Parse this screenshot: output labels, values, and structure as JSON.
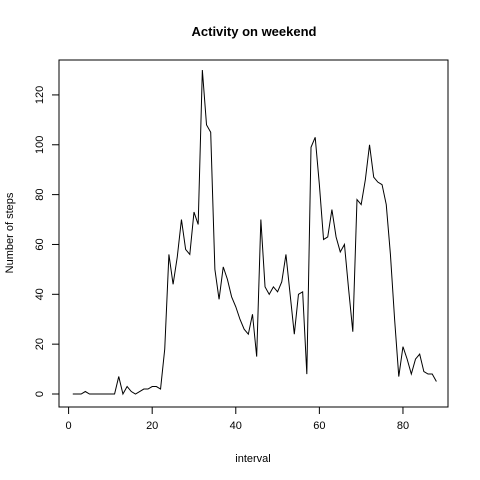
{
  "chart_data": {
    "type": "line",
    "title": "Activity on weekend",
    "xlabel": "interval",
    "ylabel": "Number of steps",
    "xlim": [
      0,
      88
    ],
    "ylim": [
      0,
      130
    ],
    "x_ticks": [
      0,
      20,
      40,
      60,
      80
    ],
    "y_ticks": [
      0,
      20,
      40,
      60,
      80,
      100,
      120
    ],
    "grid": false,
    "line_color": "#000000",
    "series": [
      {
        "x": [
          1,
          2,
          3,
          4,
          5,
          6,
          7,
          8,
          9,
          10,
          11,
          12,
          13,
          14,
          15,
          16,
          17,
          18,
          19,
          20,
          21,
          22,
          23,
          24,
          25,
          26,
          27,
          28,
          29,
          30,
          31,
          32,
          33,
          34,
          35,
          36,
          37,
          38,
          39,
          40,
          41,
          42,
          43,
          44,
          45,
          46,
          47,
          48,
          49,
          50,
          51,
          52,
          53,
          54,
          55,
          56,
          57,
          58,
          59,
          60,
          61,
          62,
          63,
          64,
          65,
          66,
          67,
          68,
          69,
          70,
          71,
          72,
          73,
          74,
          75,
          76,
          77,
          78,
          79,
          80,
          81,
          82,
          83,
          84,
          85,
          86,
          87,
          88
        ],
        "values": [
          0,
          0,
          0,
          1,
          0,
          0,
          0,
          0,
          0,
          0,
          0,
          7,
          0,
          3,
          1,
          0,
          1,
          2,
          2,
          3,
          3,
          2,
          18,
          56,
          44,
          55,
          70,
          58,
          56,
          73,
          68,
          130,
          108,
          105,
          50,
          38,
          51,
          46,
          39,
          35,
          30,
          26,
          24,
          32,
          15,
          70,
          43,
          40,
          43,
          41,
          45,
          56,
          40,
          24,
          40,
          41,
          8,
          99,
          103,
          84,
          62,
          63,
          74,
          63,
          57,
          60,
          42,
          25,
          78,
          76,
          86,
          100,
          87,
          85,
          84,
          76,
          56,
          30,
          7,
          19,
          14,
          8,
          14,
          16,
          9,
          8,
          8,
          5
        ]
      }
    ]
  }
}
